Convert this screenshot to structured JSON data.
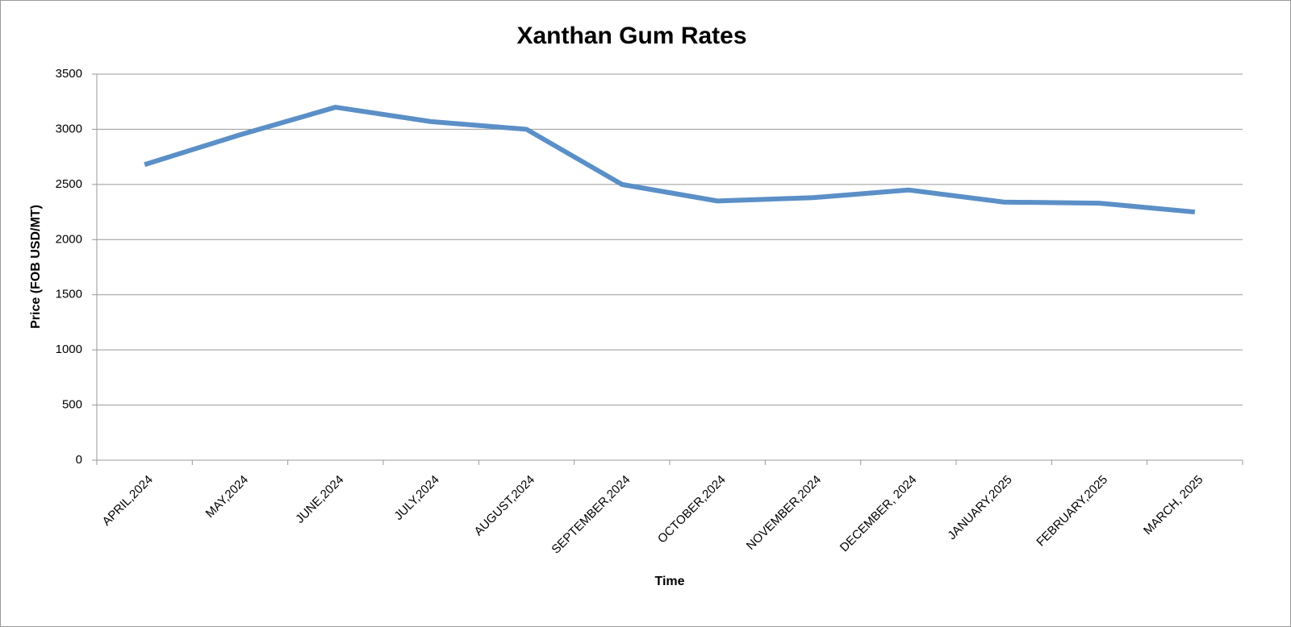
{
  "chart_data": {
    "type": "line",
    "title": "Xanthan Gum Rates",
    "x_label": "Time",
    "y_label": "Price (FOB USD/MT)",
    "categories": [
      "APRIL,2024",
      "MAY,2024",
      "JUNE,2024",
      "JULY,2024",
      "AUGUST,2024",
      "SEPTEMBER,2024",
      "OCTOBER,2024",
      "NOVEMBER,2024",
      "DECEMBER, 2024",
      "JANUARY,2025",
      "FEBRUARY,2025",
      "MARCH, 2025"
    ],
    "values": [
      2680,
      2950,
      3200,
      3070,
      3000,
      2500,
      2350,
      2380,
      2450,
      2340,
      2330,
      2250
    ],
    "color": "#5b8fc7",
    "ylim": [
      0,
      3500
    ],
    "yticks": [
      0,
      500,
      1000,
      1500,
      2000,
      2500,
      3000,
      3500
    ],
    "grid": true
  }
}
